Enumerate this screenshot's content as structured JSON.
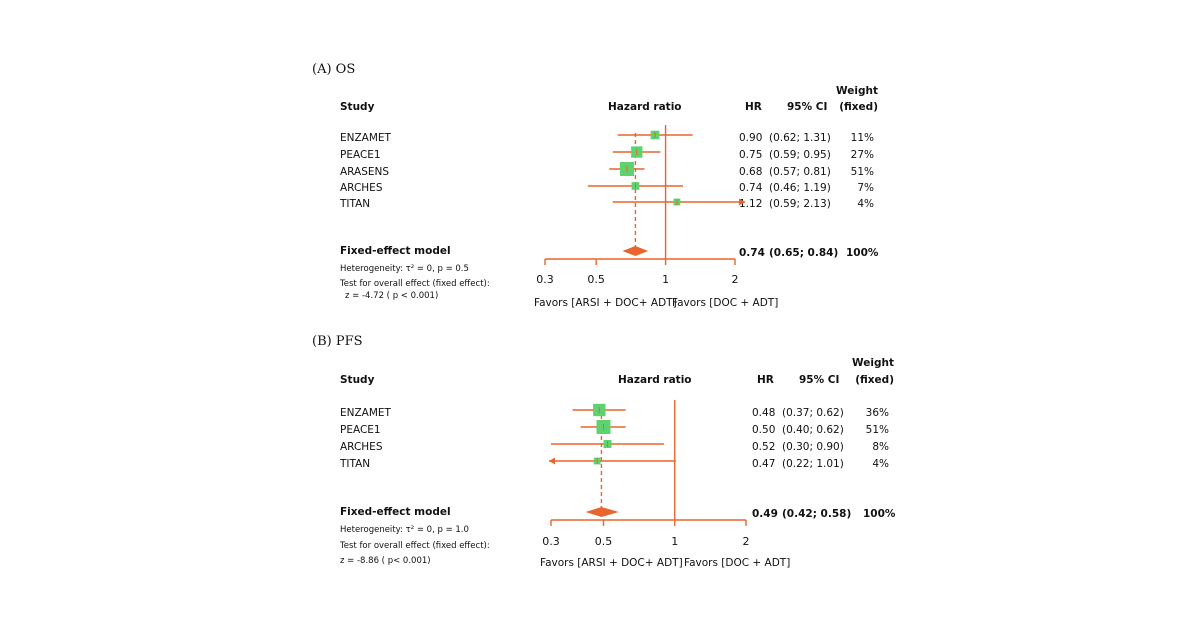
{
  "panels": [
    {
      "title": "(A) OS",
      "headers": {
        "study": "Study",
        "hazard_ratio": "Hazard ratio",
        "hr": "HR",
        "ci": "95% CI",
        "weight_1": "Weight",
        "weight_2": "(fixed)"
      },
      "summary": {
        "label": "Fixed-effect model",
        "hr_text": "0.74",
        "ci_text": "(0.65; 0.84)",
        "weight_text": "100%",
        "heterogeneity_text": "Heterogeneity: τ² = 0, p = 0.5",
        "test_text": "Test for overall effect (fixed effect):",
        "z_text": "z = -4.72 ( p < 0.001)"
      },
      "favors_left": "Favors [ARSI + DOC+ ADT]",
      "favors_right": "Favors [DOC + ADT]",
      "axis_ticks": [
        "0.3",
        "0.5",
        "1",
        "2"
      ],
      "studies": [
        {
          "name": "ENZAMET",
          "hr_text": "0.90",
          "ci_text": "(0.62; 1.31)",
          "weight_text": "11%"
        },
        {
          "name": "PEACE1",
          "hr_text": "0.75",
          "ci_text": "(0.59; 0.95)",
          "weight_text": "27%"
        },
        {
          "name": "ARASENS",
          "hr_text": "0.68",
          "ci_text": "(0.57; 0.81)",
          "weight_text": "51%"
        },
        {
          "name": "ARCHES",
          "hr_text": "0.74",
          "ci_text": "(0.46; 1.19)",
          "weight_text": "7%"
        },
        {
          "name": "TITAN",
          "hr_text": "1.12",
          "ci_text": "(0.59; 2.13)",
          "weight_text": "4%"
        }
      ]
    },
    {
      "title": "(B) PFS",
      "headers": {
        "study": "Study",
        "hazard_ratio": "Hazard ratio",
        "hr": "HR",
        "ci": "95% CI",
        "weight_1": "Weight",
        "weight_2": "(fixed)"
      },
      "summary": {
        "label": "Fixed-effect model",
        "hr_text": "0.49",
        "ci_text": "(0.42; 0.58)",
        "weight_text": "100%",
        "heterogeneity_text": "Heterogeneity: τ² = 0, p = 1.0",
        "test_text": "Test for overall effect (fixed effect):",
        "z_text": "z = -8.86 ( p< 0.001)"
      },
      "favors_left": "Favors [ARSI + DOC+ ADT]",
      "favors_right": "Favors [DOC + ADT]",
      "axis_ticks": [
        "0.3",
        "0.5",
        "1",
        "2"
      ],
      "studies": [
        {
          "name": "ENZAMET",
          "hr_text": "0.48",
          "ci_text": "(0.37; 0.62)",
          "weight_text": "36%"
        },
        {
          "name": "PEACE1",
          "hr_text": "0.50",
          "ci_text": "(0.40; 0.62)",
          "weight_text": "51%"
        },
        {
          "name": "ARCHES",
          "hr_text": "0.52",
          "ci_text": "(0.30; 0.90)",
          "weight_text": "8%"
        },
        {
          "name": "TITAN",
          "hr_text": "0.47",
          "ci_text": "(0.22; 1.01)",
          "weight_text": "4%"
        }
      ]
    }
  ],
  "chart_data": [
    {
      "type": "forest",
      "scale": "log",
      "xlim": [
        0.3,
        2
      ],
      "reference_line": 1,
      "colors": {
        "line": "#e8652b",
        "box": "#5fd16e",
        "diamond": "#e8652b"
      },
      "studies": [
        {
          "name": "ENZAMET",
          "hr": 0.9,
          "lo": 0.62,
          "hi": 1.31,
          "weight": 11
        },
        {
          "name": "PEACE1",
          "hr": 0.75,
          "lo": 0.59,
          "hi": 0.95,
          "weight": 27
        },
        {
          "name": "ARASENS",
          "hr": 0.68,
          "lo": 0.57,
          "hi": 0.81,
          "weight": 51
        },
        {
          "name": "ARCHES",
          "hr": 0.74,
          "lo": 0.46,
          "hi": 1.19,
          "weight": 7
        },
        {
          "name": "TITAN",
          "hr": 1.12,
          "lo": 0.59,
          "hi": 2.13,
          "weight": 4
        }
      ],
      "pooled": {
        "hr": 0.74,
        "lo": 0.65,
        "hi": 0.84
      }
    },
    {
      "type": "forest",
      "scale": "log",
      "xlim": [
        0.3,
        2
      ],
      "reference_line": 1,
      "colors": {
        "line": "#e8652b",
        "box": "#5fd16e",
        "diamond": "#e8652b"
      },
      "studies": [
        {
          "name": "ENZAMET",
          "hr": 0.48,
          "lo": 0.37,
          "hi": 0.62,
          "weight": 36
        },
        {
          "name": "PEACE1",
          "hr": 0.5,
          "lo": 0.4,
          "hi": 0.62,
          "weight": 51
        },
        {
          "name": "ARCHES",
          "hr": 0.52,
          "lo": 0.3,
          "hi": 0.9,
          "weight": 8
        },
        {
          "name": "TITAN",
          "hr": 0.47,
          "lo": 0.22,
          "hi": 1.01,
          "weight": 4
        }
      ],
      "pooled": {
        "hr": 0.49,
        "lo": 0.42,
        "hi": 0.58
      }
    }
  ]
}
